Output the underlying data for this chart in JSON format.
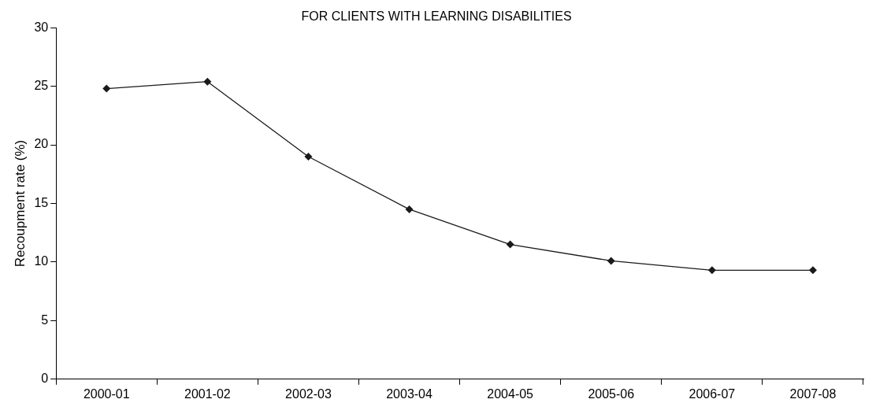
{
  "chart_data": {
    "type": "line",
    "title": "FOR CLIENTS WITH LEARNING DISABILITIES",
    "ylabel": "Recoupment rate (%)",
    "categories": [
      "2000-01",
      "2001-02",
      "2002-03",
      "2003-04",
      "2004-05",
      "2005-06",
      "2006-07",
      "2007-08"
    ],
    "series": [
      {
        "color": "#1a1a1a",
        "values": [
          24.8,
          25.4,
          19.0,
          14.5,
          11.5,
          10.1,
          9.3,
          9.3
        ]
      }
    ],
    "ylim": [
      0,
      30
    ],
    "yticks": [
      0,
      5,
      10,
      15,
      20,
      25,
      30
    ],
    "grid": false,
    "legend": false,
    "marker": "diamond",
    "line_style": "solid"
  }
}
